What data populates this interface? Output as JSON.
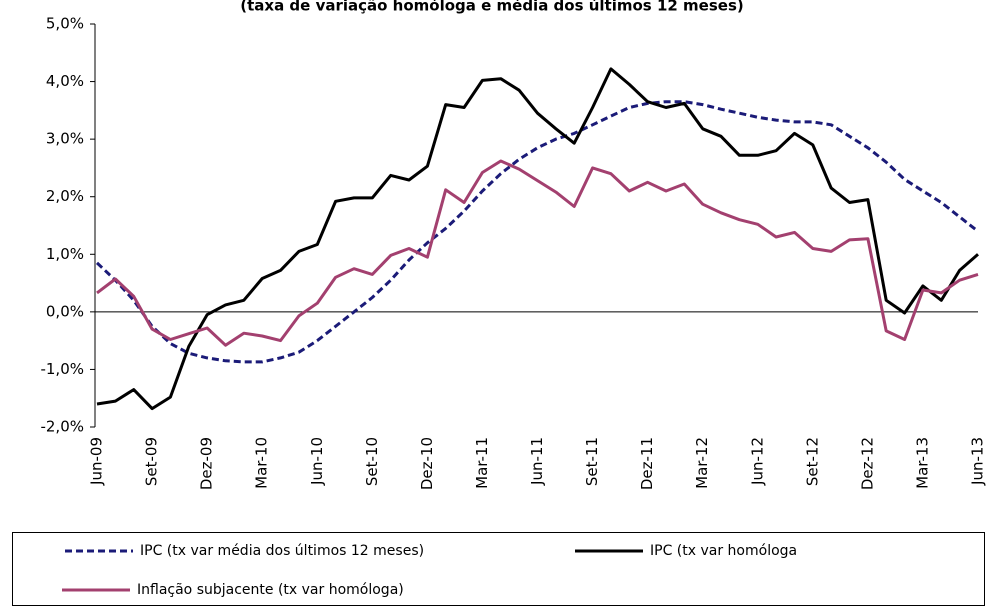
{
  "chart_data": {
    "type": "line",
    "title": "(taxa de variação homóloga e média dos últimos 12 meses)",
    "categories": [
      "Jun-09",
      null,
      null,
      "Set-09",
      null,
      null,
      "Dez-09",
      null,
      null,
      "Mar-10",
      null,
      null,
      "Jun-10",
      null,
      null,
      "Set-10",
      null,
      null,
      "Dez-10",
      null,
      null,
      "Mar-11",
      null,
      null,
      "Jun-11",
      null,
      null,
      "Set-11",
      null,
      null,
      "Dez-11",
      null,
      null,
      "Mar-12",
      null,
      null,
      "Jun-12",
      null,
      null,
      "Set-12",
      null,
      null,
      "Dez-12",
      null,
      null,
      "Mar-13",
      null,
      null,
      "Jun-13"
    ],
    "series": [
      {
        "name": "IPC (tx var média dos últimos 12 meses)",
        "color": "#1b1b78",
        "dashed": true,
        "values": [
          0.85,
          0.55,
          0.2,
          -0.25,
          -0.55,
          -0.72,
          -0.8,
          -0.85,
          -0.87,
          -0.87,
          -0.8,
          -0.7,
          -0.5,
          -0.25,
          0.0,
          0.25,
          0.55,
          0.9,
          1.2,
          1.45,
          1.75,
          2.1,
          2.4,
          2.65,
          2.85,
          3.0,
          3.1,
          3.25,
          3.4,
          3.55,
          3.62,
          3.65,
          3.65,
          3.6,
          3.52,
          3.45,
          3.38,
          3.33,
          3.3,
          3.3,
          3.25,
          3.05,
          2.85,
          2.6,
          2.3,
          2.1,
          1.9,
          1.65,
          1.4
        ]
      },
      {
        "name": "IPC (tx var homóloga",
        "color": "#000000",
        "dashed": false,
        "values": [
          -1.6,
          -1.55,
          -1.35,
          -1.68,
          -1.48,
          -0.6,
          -0.05,
          0.12,
          0.2,
          0.58,
          0.72,
          1.05,
          1.17,
          1.92,
          1.98,
          1.98,
          2.37,
          2.29,
          2.53,
          3.6,
          3.55,
          4.02,
          4.05,
          3.85,
          3.45,
          3.18,
          2.93,
          3.55,
          4.22,
          3.95,
          3.65,
          3.55,
          3.62,
          3.18,
          3.05,
          2.72,
          2.72,
          2.8,
          3.1,
          2.9,
          2.15,
          1.9,
          1.95,
          0.2,
          -0.02,
          0.45,
          0.2,
          0.72,
          1.0
        ]
      },
      {
        "name": "Inflação subjacente (tx var homóloga)",
        "color": "#a3406f",
        "dashed": false,
        "values": [
          0.33,
          0.57,
          0.27,
          -0.3,
          -0.48,
          -0.38,
          -0.28,
          -0.58,
          -0.37,
          -0.42,
          -0.5,
          -0.07,
          0.15,
          0.6,
          0.75,
          0.65,
          0.98,
          1.1,
          0.95,
          2.12,
          1.9,
          2.42,
          2.62,
          2.48,
          2.28,
          2.08,
          1.83,
          2.5,
          2.4,
          2.1,
          2.25,
          2.1,
          2.22,
          1.87,
          1.72,
          1.6,
          1.52,
          1.3,
          1.38,
          1.1,
          1.05,
          1.25,
          1.27,
          -0.33,
          -0.48,
          0.38,
          0.33,
          0.55,
          0.65
        ]
      }
    ],
    "ylim": [
      -2,
      5
    ],
    "yticks": [
      {
        "value": -2,
        "label": "-2,0%"
      },
      {
        "value": -1,
        "label": "-1,0%"
      },
      {
        "value": 0,
        "label": "0,0%"
      },
      {
        "value": 1,
        "label": "1,0%"
      },
      {
        "value": 2,
        "label": "2,0%"
      },
      {
        "value": 3,
        "label": "3,0%"
      },
      {
        "value": 4,
        "label": "4,0%"
      },
      {
        "value": 5,
        "label": "5,0%"
      }
    ]
  }
}
